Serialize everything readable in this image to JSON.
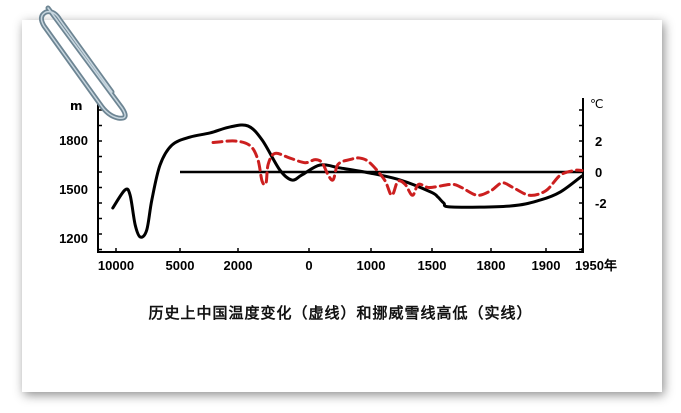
{
  "chart_data": {
    "type": "line",
    "title": "历史上中国温度变化（虚线）和挪威雪线高低（实线）",
    "x_unit_label": "年",
    "left_axis": {
      "label": "m",
      "ticks": [
        1800,
        1500,
        1200
      ]
    },
    "right_axis": {
      "label": "℃",
      "ticks": [
        "2",
        "0",
        "-2"
      ]
    },
    "x_ticks": [
      "10000",
      "5000",
      "2000",
      "0",
      "1000",
      "1500",
      "1800",
      "1900",
      "1950年"
    ],
    "x_tick_years": [
      -10000,
      -5000,
      -2000,
      0,
      1000,
      1500,
      1800,
      1900,
      1950
    ],
    "series": [
      {
        "name": "挪威雪线高低（实线）",
        "axis": "left",
        "style": "solid",
        "color": "#000000",
        "x": [
          -10250,
          -9300,
          -8900,
          -8500,
          -8100,
          -7600,
          -7200,
          -6560,
          -5630,
          -4480,
          -3450,
          -2410,
          -1720,
          -1320,
          -820,
          -480,
          -200,
          180,
          500,
          980,
          1240,
          1490,
          1530,
          1560,
          1600,
          1835,
          1890,
          1920,
          1950
        ],
        "y": [
          1384,
          1494,
          1463,
          1280,
          1206,
          1249,
          1433,
          1647,
          1769,
          1818,
          1843,
          1880,
          1886,
          1800,
          1616,
          1555,
          1586,
          1647,
          1629,
          1598,
          1555,
          1482,
          1451,
          1414,
          1390,
          1396,
          1433,
          1482,
          1580
        ]
      },
      {
        "name": "中国温度变化（虚线）",
        "axis": "right",
        "style": "dashed",
        "color": "#cc1f1f",
        "x": [
          -3290,
          -2160,
          -1660,
          -1440,
          -1320,
          -1210,
          -1150,
          -960,
          -540,
          -110,
          100,
          210,
          310,
          390,
          470,
          660,
          820,
          980,
          1110,
          1170,
          1220,
          1280,
          1340,
          1390,
          1480,
          1600,
          1650,
          1730,
          1800,
          1820,
          1840,
          1870,
          1900,
          1920,
          1940,
          1950
        ],
        "y": [
          1.9,
          2.0,
          1.7,
          0.8,
          -0.6,
          -0.7,
          0.5,
          1.2,
          0.9,
          0.6,
          0.8,
          0.6,
          -0.2,
          -0.5,
          0.5,
          0.8,
          0.9,
          0.6,
          -0.5,
          -1.5,
          -0.6,
          -0.8,
          -1.5,
          -0.8,
          -1.0,
          -0.8,
          -1.0,
          -1.5,
          -1.2,
          -0.7,
          -1.0,
          -1.5,
          -1.2,
          -0.2,
          0.1,
          0.1
        ]
      }
    ],
    "reference_line": {
      "value_celsius": 0,
      "from_year": -5000,
      "to_year": 1950
    },
    "grid": false
  }
}
